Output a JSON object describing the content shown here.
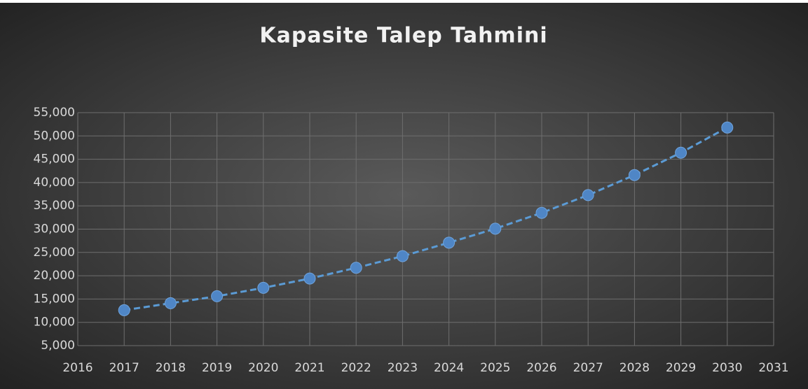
{
  "chart_data": {
    "type": "scatter_line",
    "title": "Kapasite Talep Tahmini",
    "x": [
      2017,
      2018,
      2019,
      2020,
      2021,
      2022,
      2023,
      2024,
      2025,
      2026,
      2027,
      2028,
      2029,
      2030
    ],
    "series": [
      {
        "color": "#4f86c6",
        "values": [
          12600,
          14100,
          15600,
          17400,
          19400,
          21700,
          24200,
          27100,
          30100,
          33500,
          37300,
          41600,
          46400,
          51800
        ]
      }
    ],
    "xlim": [
      2016,
      2031
    ],
    "xticks": [
      2016,
      2017,
      2018,
      2019,
      2020,
      2021,
      2022,
      2023,
      2024,
      2025,
      2026,
      2027,
      2028,
      2029,
      2030,
      2031
    ],
    "ylim": [
      5000,
      55000
    ],
    "yticks": [
      {
        "value": 5000,
        "label": "5,000"
      },
      {
        "value": 10000,
        "label": "10,000"
      },
      {
        "value": 15000,
        "label": "15,000"
      },
      {
        "value": 20000,
        "label": "20,000"
      },
      {
        "value": 25000,
        "label": "25,000"
      },
      {
        "value": 30000,
        "label": "30,000"
      },
      {
        "value": 35000,
        "label": "35,000"
      },
      {
        "value": 40000,
        "label": "40,000"
      },
      {
        "value": 45000,
        "label": "45,000"
      },
      {
        "value": 50000,
        "label": "50,000"
      },
      {
        "value": 55000,
        "label": "55,000"
      }
    ],
    "grid": true
  }
}
